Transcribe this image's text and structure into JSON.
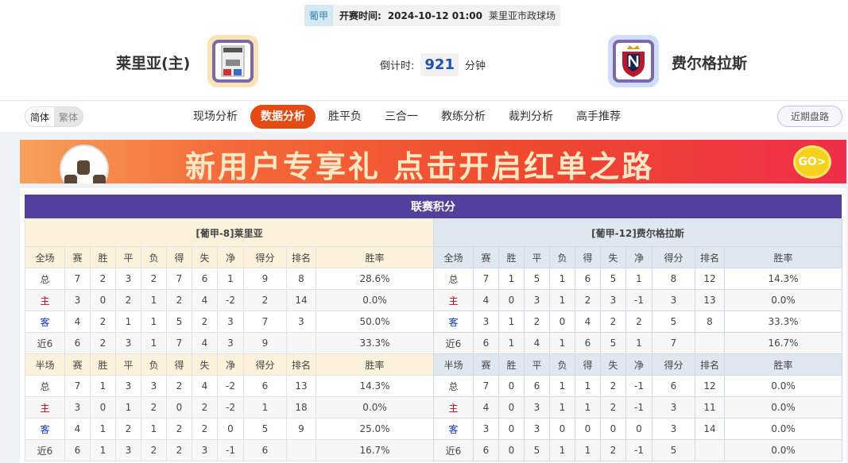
{
  "match": {
    "league": "葡甲",
    "kickoff_label": "开赛时间:",
    "kickoff": "2024-10-12 01:00",
    "venue": "莱里亚市政球场",
    "home": "莱里亚(主)",
    "away": "费尔格拉斯",
    "countdown_label": "倒计时:",
    "countdown": "921",
    "countdown_unit": "分钟"
  },
  "nav": {
    "lang": [
      "简体",
      "繁体"
    ],
    "tabs": [
      "现场分析",
      "数据分析",
      "胜平负",
      "三合一",
      "教练分析",
      "裁判分析",
      "高手推荐"
    ],
    "active": "数据分析",
    "recent": "近期盘路"
  },
  "banner": {
    "text": "新用户专享礼  点击开启红单之路",
    "go": "GO>"
  },
  "colors": {
    "accent": "#e34a14",
    "title_bar": "#51409c",
    "home_label": "#d0021b",
    "away_label": "#1236c8"
  },
  "standings": {
    "title": "联赛积分",
    "columns_full": [
      "全场",
      "赛",
      "胜",
      "平",
      "负",
      "得",
      "失",
      "净",
      "得分",
      "排名",
      "胜率"
    ],
    "columns_half": [
      "半场",
      "赛",
      "胜",
      "平",
      "负",
      "得",
      "失",
      "净",
      "得分",
      "排名",
      "胜率"
    ],
    "teams": [
      {
        "caption": "[葡甲-8]莱里亚",
        "full": [
          [
            "总",
            "7",
            "2",
            "3",
            "2",
            "7",
            "6",
            "1",
            "9",
            "8",
            "28.6%"
          ],
          [
            "主",
            "3",
            "0",
            "2",
            "1",
            "2",
            "4",
            "-2",
            "2",
            "14",
            "0.0%"
          ],
          [
            "客",
            "4",
            "2",
            "1",
            "1",
            "5",
            "2",
            "3",
            "7",
            "3",
            "50.0%"
          ],
          [
            "近6",
            "6",
            "2",
            "3",
            "1",
            "7",
            "4",
            "3",
            "9",
            "",
            "33.3%"
          ]
        ],
        "half": [
          [
            "总",
            "7",
            "1",
            "3",
            "3",
            "2",
            "4",
            "-2",
            "6",
            "13",
            "14.3%"
          ],
          [
            "主",
            "3",
            "0",
            "1",
            "2",
            "0",
            "2",
            "-2",
            "1",
            "18",
            "0.0%"
          ],
          [
            "客",
            "4",
            "1",
            "2",
            "1",
            "2",
            "2",
            "0",
            "5",
            "9",
            "25.0%"
          ],
          [
            "近6",
            "6",
            "1",
            "3",
            "2",
            "2",
            "3",
            "-1",
            "6",
            "",
            "16.7%"
          ]
        ]
      },
      {
        "caption": "[葡甲-12]费尔格拉斯",
        "full": [
          [
            "总",
            "7",
            "1",
            "5",
            "1",
            "6",
            "5",
            "1",
            "8",
            "12",
            "14.3%"
          ],
          [
            "主",
            "4",
            "0",
            "3",
            "1",
            "2",
            "3",
            "-1",
            "3",
            "13",
            "0.0%"
          ],
          [
            "客",
            "3",
            "1",
            "2",
            "0",
            "4",
            "2",
            "2",
            "5",
            "8",
            "33.3%"
          ],
          [
            "近6",
            "6",
            "1",
            "4",
            "1",
            "6",
            "5",
            "1",
            "7",
            "",
            "16.7%"
          ]
        ],
        "half": [
          [
            "总",
            "7",
            "0",
            "6",
            "1",
            "1",
            "2",
            "-1",
            "6",
            "12",
            "0.0%"
          ],
          [
            "主",
            "4",
            "0",
            "3",
            "1",
            "1",
            "2",
            "-1",
            "3",
            "11",
            "0.0%"
          ],
          [
            "客",
            "3",
            "0",
            "3",
            "0",
            "0",
            "0",
            "0",
            "3",
            "14",
            "0.0%"
          ],
          [
            "近6",
            "6",
            "0",
            "5",
            "1",
            "1",
            "2",
            "-1",
            "5",
            "",
            "0.0%"
          ]
        ]
      }
    ]
  }
}
